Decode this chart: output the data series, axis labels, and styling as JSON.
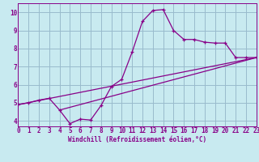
{
  "xlabel": "Windchill (Refroidissement éolien,°C)",
  "bg_color": "#c8eaf0",
  "line_color": "#880088",
  "grid_color": "#99bbcc",
  "curve_x": [
    0,
    1,
    2,
    3,
    4,
    5,
    6,
    7,
    8,
    9,
    10,
    11,
    12,
    13,
    14,
    15,
    16,
    17,
    18,
    19,
    20,
    21,
    22,
    23
  ],
  "curve_y": [
    4.9,
    5.0,
    5.15,
    5.25,
    4.6,
    3.85,
    4.1,
    4.05,
    4.85,
    5.9,
    6.3,
    7.8,
    9.5,
    10.1,
    10.15,
    9.0,
    8.5,
    8.5,
    8.35,
    8.3,
    8.3,
    7.5,
    7.5,
    7.5
  ],
  "line1_x": [
    0,
    23
  ],
  "line1_y": [
    4.9,
    7.5
  ],
  "line2_x": [
    4,
    23
  ],
  "line2_y": [
    4.6,
    7.5
  ],
  "xlim": [
    0,
    23
  ],
  "ylim": [
    3.7,
    10.5
  ],
  "xticks": [
    0,
    1,
    2,
    3,
    4,
    5,
    6,
    7,
    8,
    9,
    10,
    11,
    12,
    13,
    14,
    15,
    16,
    17,
    18,
    19,
    20,
    21,
    22,
    23
  ],
  "yticks": [
    4,
    5,
    6,
    7,
    8,
    9,
    10
  ],
  "tick_fontsize": 5.5,
  "xlabel_fontsize": 5.5
}
